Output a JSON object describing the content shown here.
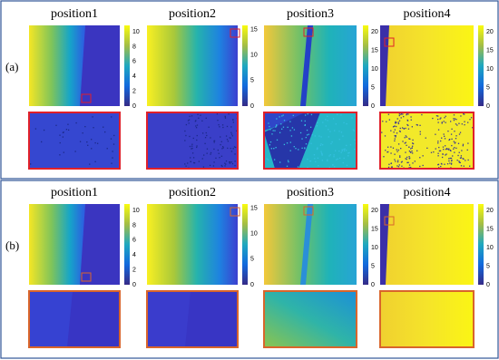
{
  "rows": [
    {
      "label": "(a)",
      "panels": [
        {
          "title": "position1",
          "colorbar_ticks": [
            "0",
            "2",
            "4",
            "6",
            "8",
            "10"
          ]
        },
        {
          "title": "position2",
          "colorbar_ticks": [
            "0",
            "5",
            "10",
            "15"
          ]
        },
        {
          "title": "position3",
          "colorbar_ticks": [
            "0",
            "5",
            "10",
            "15",
            "20"
          ]
        },
        {
          "title": "position4",
          "colorbar_ticks": [
            "0",
            "5",
            "10",
            "15",
            "20"
          ]
        }
      ]
    },
    {
      "label": "(b)",
      "panels": [
        {
          "title": "position1",
          "colorbar_ticks": [
            "0",
            "2",
            "4",
            "6",
            "8",
            "10"
          ]
        },
        {
          "title": "position2",
          "colorbar_ticks": [
            "0",
            "5",
            "10",
            "15"
          ]
        },
        {
          "title": "position3",
          "colorbar_ticks": [
            "0",
            "5",
            "10",
            "15",
            "20"
          ]
        },
        {
          "title": "position4",
          "colorbar_ticks": [
            "0",
            "5",
            "10",
            "15",
            "20"
          ]
        }
      ]
    }
  ]
}
